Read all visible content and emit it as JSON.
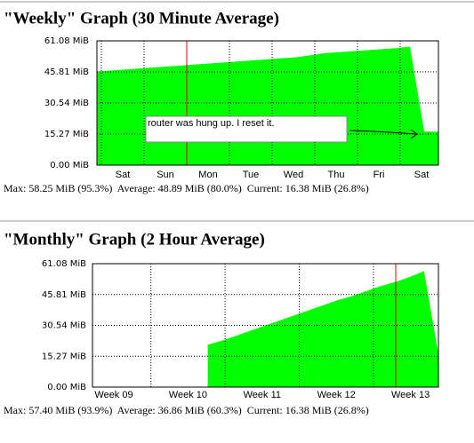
{
  "chart_data": [
    {
      "type": "area",
      "title": "\"Weekly\" Graph (30 Minute Average)",
      "x_labels": [
        "Sat",
        "Sun",
        "Mon",
        "Tue",
        "Wed",
        "Thu",
        "Fri",
        "Sat"
      ],
      "values": [
        46,
        46.5,
        47,
        47.5,
        48,
        48.5,
        49,
        49.5,
        50,
        50.5,
        51,
        51.5,
        52,
        52.5,
        53,
        54,
        55,
        55.5,
        56,
        56.5,
        57,
        57.5,
        58.25,
        16.5,
        16.38
      ],
      "color": "#00ff00",
      "ylim": [
        0,
        61.08
      ],
      "yticks": [
        {
          "value": 0,
          "label": "0.00 MiB"
        },
        {
          "value": 15.27,
          "label": "15.27 MiB"
        },
        {
          "value": 30.54,
          "label": "30.54 MiB"
        },
        {
          "value": 45.81,
          "label": "45.81 MiB"
        },
        {
          "value": 61.08,
          "label": "61.08 MiB"
        }
      ],
      "grid": true,
      "annotation": "router was hung up. I reset it.",
      "stats": "Max: 58.25 MiB (95.3%)  Average: 48.89 MiB (80.0%)  Current: 16.38 MiB (26.8%)"
    },
    {
      "type": "area",
      "title": "\"Monthly\" Graph (2 Hour Average)",
      "x_labels": [
        "Week 09",
        "Week 10",
        "Week 11",
        "Week 12",
        "Week 13"
      ],
      "values": [
        null,
        null,
        null,
        null,
        null,
        null,
        null,
        null,
        21,
        23,
        25.5,
        28,
        30.5,
        33,
        35.5,
        38,
        40.5,
        43,
        45,
        47.5,
        50,
        52,
        54.5,
        57.4,
        16.38
      ],
      "color": "#00ff00",
      "ylim": [
        0,
        61.08
      ],
      "yticks": [
        {
          "value": 0,
          "label": "0.00 MiB"
        },
        {
          "value": 15.27,
          "label": "15.27 MiB"
        },
        {
          "value": 30.54,
          "label": "30.54 MiB"
        },
        {
          "value": 45.81,
          "label": "45.81 MiB"
        },
        {
          "value": 61.08,
          "label": "61.08 MiB"
        }
      ],
      "grid": true,
      "stats": "Max: 57.40 MiB (93.9%)  Average: 36.86 MiB (60.3%)  Current: 16.38 MiB (26.8%)"
    }
  ]
}
